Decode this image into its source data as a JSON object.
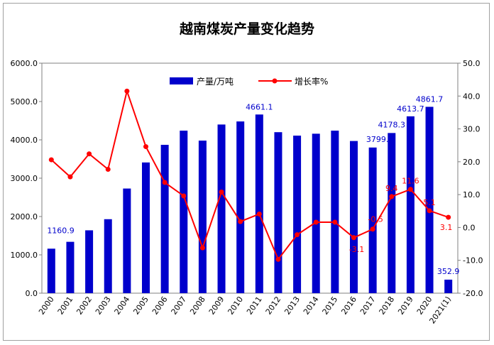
{
  "chart_data": {
    "type": "bar",
    "title": "越南煤炭产量变化趋势",
    "categories": [
      "2000",
      "2001",
      "2002",
      "2003",
      "2004",
      "2005",
      "2006",
      "2007",
      "2008",
      "2009",
      "2010",
      "2011",
      "2012",
      "2013",
      "2014",
      "2015",
      "2016",
      "2017",
      "2018",
      "2019",
      "2020",
      "2021(1)"
    ],
    "series": [
      {
        "name": "产量/万吨",
        "type": "bar",
        "axis": "left",
        "color": "#0000cc",
        "values": [
          1160.9,
          1340,
          1640,
          1930,
          2730,
          3410,
          3870,
          4240,
          3980,
          4400,
          4480,
          4661.1,
          4200,
          4110,
          4160,
          4240,
          3970,
          3799.9,
          4178.3,
          4613.7,
          4861.7,
          352.9
        ]
      },
      {
        "name": "增长率%",
        "type": "line",
        "axis": "right",
        "color": "#ff0000",
        "values": [
          20.6,
          15.4,
          22.4,
          17.7,
          41.5,
          24.6,
          13.7,
          9.6,
          -6.2,
          10.8,
          1.8,
          4.1,
          -9.7,
          -2.2,
          1.6,
          1.6,
          -3.1,
          -0.5,
          9.4,
          11.6,
          5.1,
          3.1
        ]
      }
    ],
    "yleft": {
      "min": 0,
      "max": 6000,
      "ticks": [
        "0.0",
        "1000.0",
        "2000.0",
        "3000.0",
        "4000.0",
        "5000.0",
        "6000.0"
      ]
    },
    "yright": {
      "min": -20,
      "max": 50,
      "ticks": [
        "-20.0",
        "-10.0",
        "0.0",
        "10.0",
        "20.0",
        "30.0",
        "40.0",
        "50.0"
      ]
    },
    "bar_labels": [
      {
        "index": 0,
        "text": "1160.9"
      },
      {
        "index": 11,
        "text": "4661.1"
      },
      {
        "index": 17,
        "text": "3799.9"
      },
      {
        "index": 18,
        "text": "4178.3"
      },
      {
        "index": 19,
        "text": "4613.7"
      },
      {
        "index": 20,
        "text": "4861.7"
      },
      {
        "index": 21,
        "text": "352.9"
      }
    ],
    "line_labels": [
      {
        "index": 16,
        "text": "-3.1"
      },
      {
        "index": 17,
        "text": "-0.5"
      },
      {
        "index": 18,
        "text": "9.4"
      },
      {
        "index": 19,
        "text": "11.6"
      },
      {
        "index": 20,
        "text": "5.1"
      },
      {
        "index": 21,
        "text": "3.1"
      }
    ],
    "legend": {
      "placement": "top-center"
    },
    "grid": false
  }
}
